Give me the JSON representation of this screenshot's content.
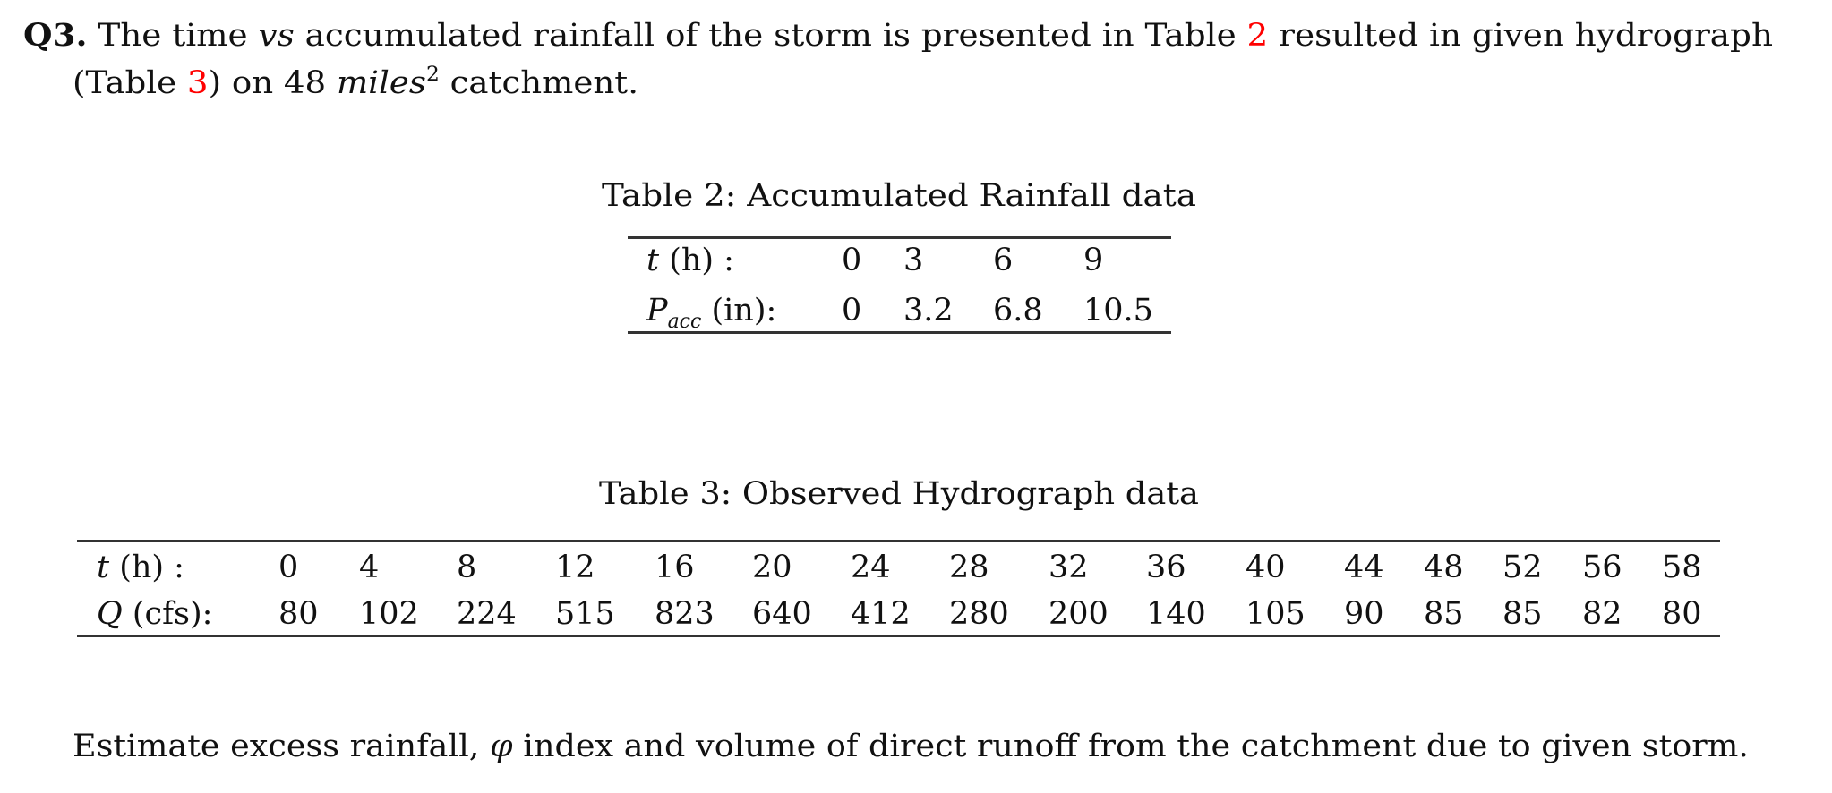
{
  "question": {
    "label": "Q3.",
    "line1": {
      "pre": "The time ",
      "vs": "vs",
      "mid": " accumulated rainfall of the storm is presented in Table ",
      "ref_table2": "2",
      "post": " resulted in given hydrograph"
    },
    "line2": {
      "pre": "(Table ",
      "ref_table3": "3",
      "mid": ") on 48 ",
      "unit": "miles",
      "unit_exp": "2",
      "post": " catchment."
    },
    "ref_color": "#ff0000"
  },
  "table2": {
    "caption": "Table 2: Accumulated Rainfall data",
    "row_headers": {
      "t_var": "t",
      "t_unit": " (h) :",
      "p_var": "P",
      "p_sub": "acc",
      "p_unit": " (in):"
    },
    "columns": [
      {
        "t": "0",
        "p": "0"
      },
      {
        "t": "3",
        "p": "3.2"
      },
      {
        "t": "6",
        "p": "6.8"
      },
      {
        "t": "9",
        "p": "10.5"
      }
    ]
  },
  "table3": {
    "caption": "Table 3: Observed Hydrograph data",
    "row_headers": {
      "t_var": "t",
      "t_unit": " (h) :",
      "q_var": "Q",
      "q_unit": " (cfs):"
    },
    "columns": [
      {
        "t": "0",
        "q": "80"
      },
      {
        "t": "4",
        "q": "102"
      },
      {
        "t": "8",
        "q": "224"
      },
      {
        "t": "12",
        "q": "515"
      },
      {
        "t": "16",
        "q": "823"
      },
      {
        "t": "20",
        "q": "640"
      },
      {
        "t": "24",
        "q": "412"
      },
      {
        "t": "28",
        "q": "280"
      },
      {
        "t": "32",
        "q": "200"
      },
      {
        "t": "36",
        "q": "140"
      },
      {
        "t": "40",
        "q": "105"
      },
      {
        "t": "44",
        "q": "90"
      },
      {
        "t": "48",
        "q": "85"
      },
      {
        "t": "52",
        "q": "85"
      },
      {
        "t": "56",
        "q": "82"
      },
      {
        "t": "58",
        "q": "80"
      }
    ]
  },
  "task": {
    "pre": "Estimate excess rainfall, ",
    "phi": "φ",
    "post": " index and volume of direct runoff from the catchment due to given storm."
  }
}
